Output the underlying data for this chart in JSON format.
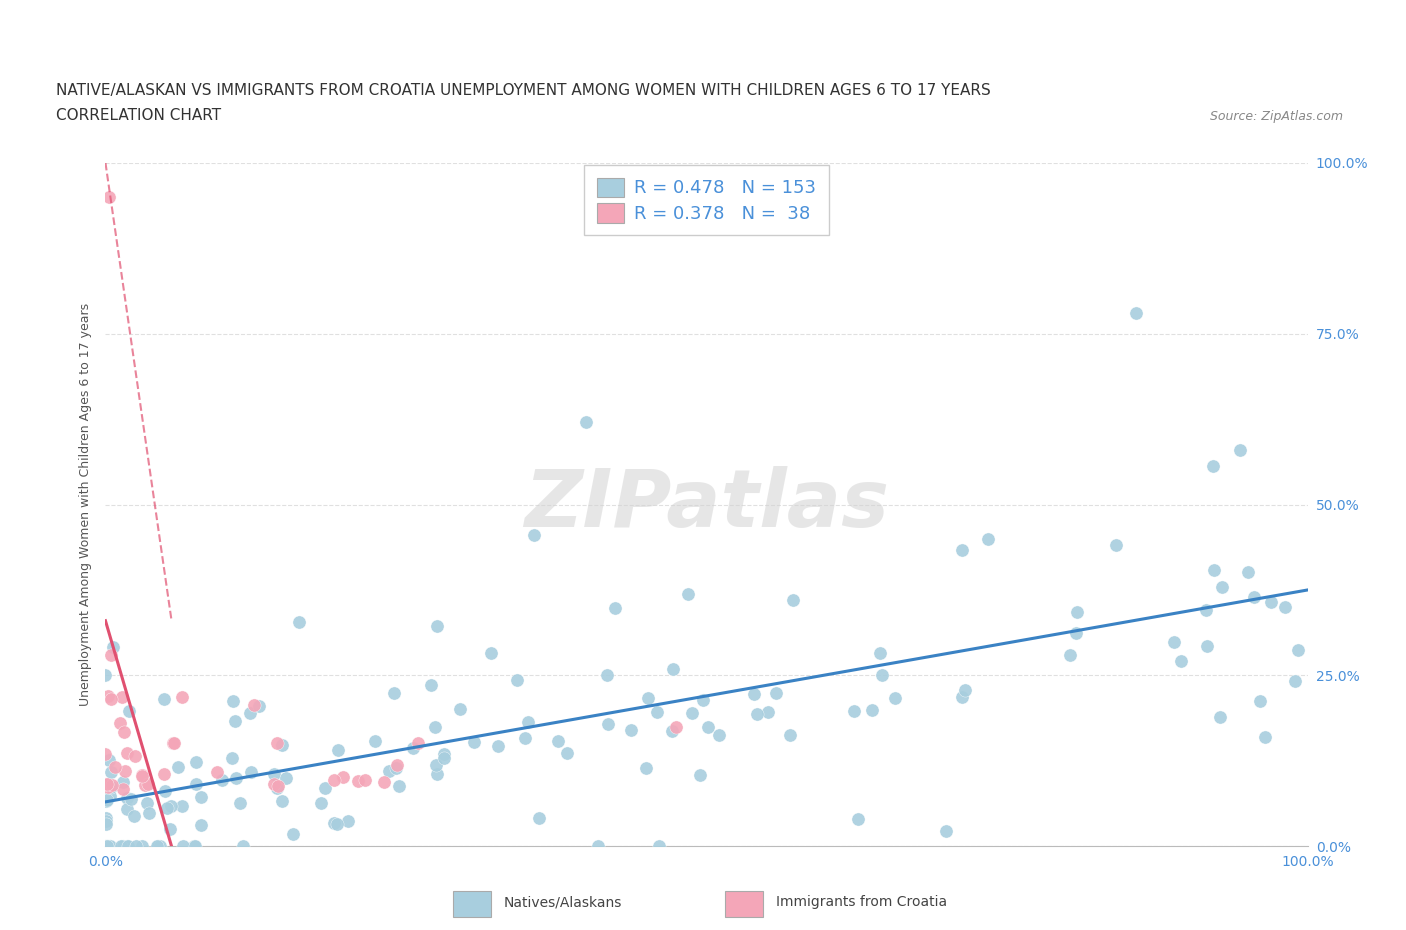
{
  "title_line1": "NATIVE/ALASKAN VS IMMIGRANTS FROM CROATIA UNEMPLOYMENT AMONG WOMEN WITH CHILDREN AGES 6 TO 17 YEARS",
  "title_line2": "CORRELATION CHART",
  "source_text": "Source: ZipAtlas.com",
  "watermark": "ZIPatlas",
  "legend_box": {
    "blue_r": "0.478",
    "blue_n": "153",
    "pink_r": "0.378",
    "pink_n": "38"
  },
  "blue_color": "#A8CEDE",
  "pink_color": "#F4A6B8",
  "trendline_blue_color": "#3A82C4",
  "trendline_pink_color": "#E05070",
  "grid_color": "#E0E0E0",
  "bg_color": "#FFFFFF",
  "title_fontsize": 11,
  "subtitle_fontsize": 11,
  "axis_label_fontsize": 9,
  "tick_fontsize": 10,
  "ylabel": "Unemployment Among Women with Children Ages 6 to 17 years"
}
